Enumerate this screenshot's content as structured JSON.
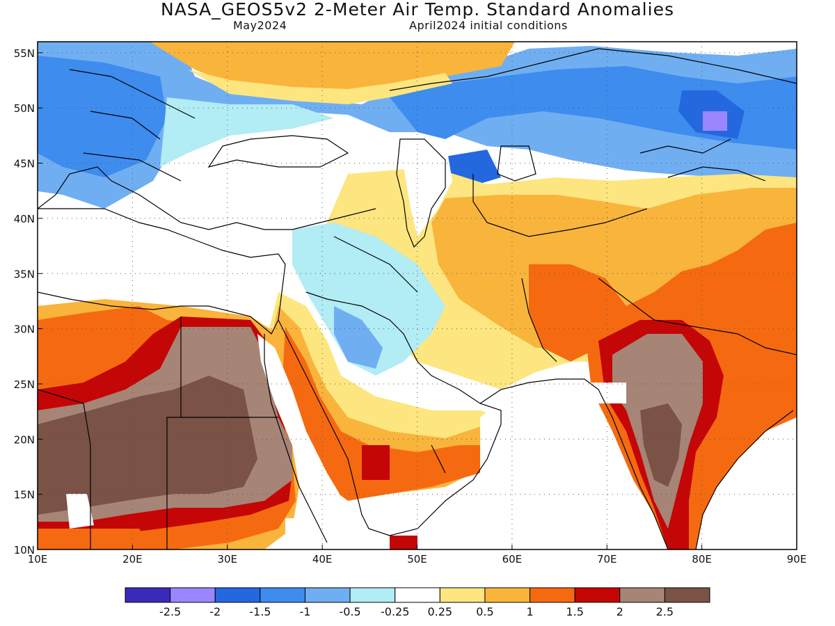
{
  "title": "NASA_GEOS5v2 2-Meter Air Temp. Standard Anomalies",
  "subtitle_left": "May2024",
  "subtitle_right": "April2024 initial conditions",
  "map": {
    "lon_range": [
      10,
      90
    ],
    "lat_range": [
      10,
      56
    ],
    "lon_ticks": [
      {
        "value": 10,
        "label": "10E"
      },
      {
        "value": 20,
        "label": "20E"
      },
      {
        "value": 30,
        "label": "30E"
      },
      {
        "value": 40,
        "label": "40E"
      },
      {
        "value": 50,
        "label": "50E"
      },
      {
        "value": 60,
        "label": "60E"
      },
      {
        "value": 70,
        "label": "70E"
      },
      {
        "value": 80,
        "label": "80E"
      },
      {
        "value": 90,
        "label": "90E"
      }
    ],
    "lat_ticks": [
      {
        "value": 10,
        "label": "10N"
      },
      {
        "value": 15,
        "label": "15N"
      },
      {
        "value": 20,
        "label": "20N"
      },
      {
        "value": 25,
        "label": "25N"
      },
      {
        "value": 30,
        "label": "30N"
      },
      {
        "value": 35,
        "label": "35N"
      },
      {
        "value": 40,
        "label": "40N"
      },
      {
        "value": 45,
        "label": "45N"
      },
      {
        "value": 50,
        "label": "50N"
      },
      {
        "value": 55,
        "label": "55N"
      }
    ]
  },
  "colorbar": {
    "colors": [
      "#3a2cb8",
      "#9b86ff",
      "#2468e0",
      "#3e8cee",
      "#70aef2",
      "#b2ecf4",
      "#ffffff",
      "#fde680",
      "#f9b43c",
      "#f56a10",
      "#c40606",
      "#a68476",
      "#7a5246"
    ],
    "labels": [
      "-2.5",
      "-2",
      "-1.5",
      "-1",
      "-0.5",
      "-0.25",
      "0.25",
      "0.5",
      "1",
      "1.5",
      "2",
      "2.5"
    ]
  }
}
